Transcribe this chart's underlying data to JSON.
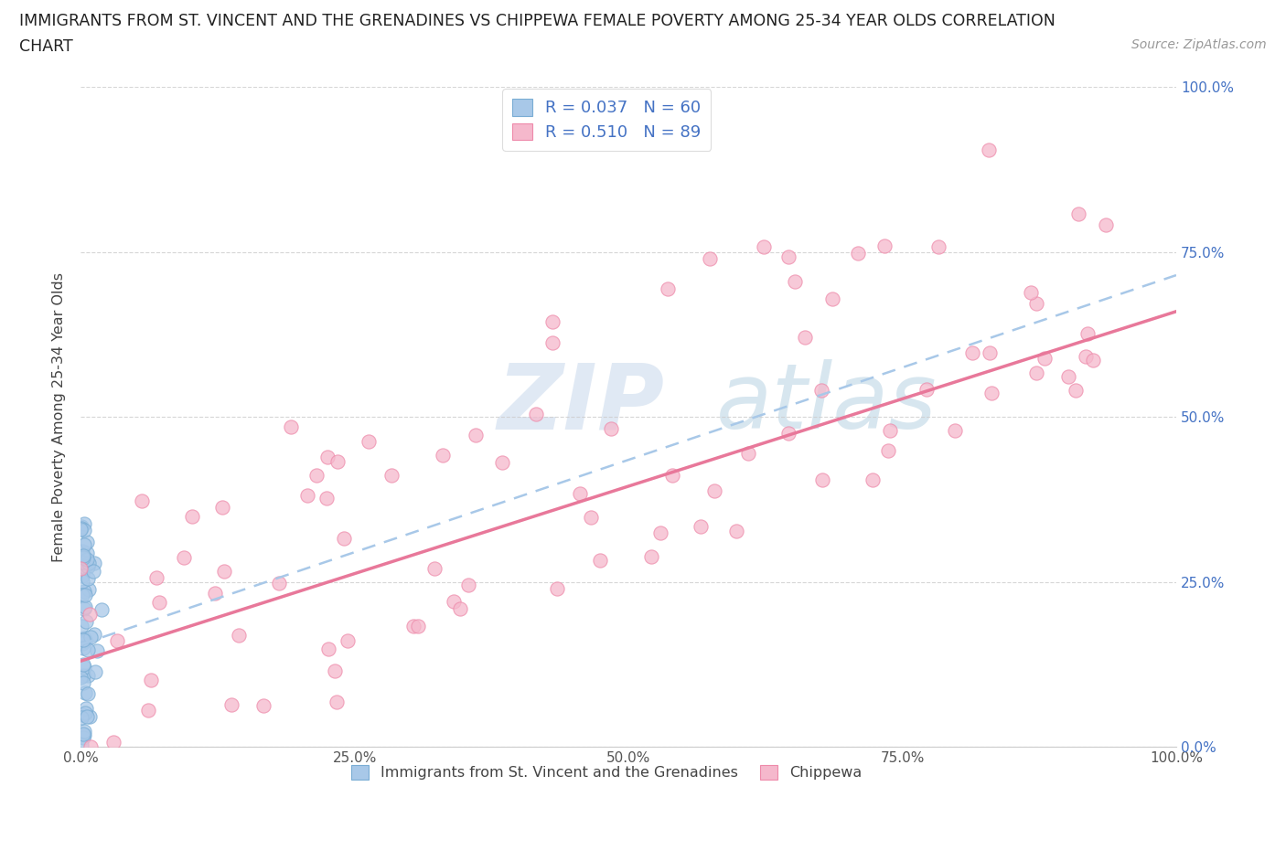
{
  "title_line1": "IMMIGRANTS FROM ST. VINCENT AND THE GRENADINES VS CHIPPEWA FEMALE POVERTY AMONG 25-34 YEAR OLDS CORRELATION",
  "title_line2": "CHART",
  "source_text": "Source: ZipAtlas.com",
  "ylabel": "Female Poverty Among 25-34 Year Olds",
  "series": [
    {
      "name": "Immigrants from St. Vincent and the Grenadines",
      "R": 0.037,
      "N": 60,
      "marker_color": "#a8c8e8",
      "marker_edge": "#7aadd4",
      "line_color": "#a8c8e8",
      "line_style": "--"
    },
    {
      "name": "Chippewa",
      "R": 0.51,
      "N": 89,
      "marker_color": "#f5b8cc",
      "marker_edge": "#ee8aaa",
      "line_color": "#e8789a",
      "line_style": "-"
    }
  ],
  "xlim": [
    0.0,
    1.0
  ],
  "ylim": [
    0.0,
    1.0
  ],
  "ytick_positions": [
    0.0,
    0.25,
    0.5,
    0.75,
    1.0
  ],
  "ytick_labels": [
    "0.0%",
    "25.0%",
    "50.0%",
    "75.0%",
    "100.0%"
  ],
  "xtick_positions": [
    0.0,
    0.25,
    0.5,
    0.75,
    1.0
  ],
  "xtick_labels": [
    "0.0%",
    "25.0%",
    "50.0%",
    "75.0%",
    "100.0%"
  ],
  "legend_R_color": "#4472c4",
  "background_color": "#ffffff",
  "grid_color": "#cccccc",
  "watermark_zip": "ZIP",
  "watermark_atlas": "atlas",
  "watermark_color_zip": "#c8d8ec",
  "watermark_color_atlas": "#a8c8dc"
}
